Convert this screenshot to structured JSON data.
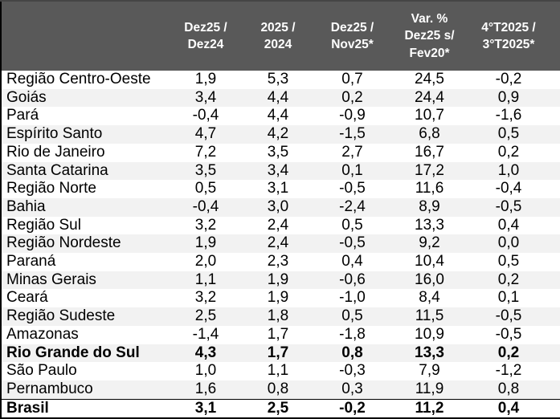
{
  "colors": {
    "header_bg": "#595959",
    "header_text": "#ffffff",
    "stripe": "#f2f2f2",
    "text": "#000000",
    "border": "#000000"
  },
  "table": {
    "row_label_column_header": "",
    "columns": [
      {
        "label": "Dez25 /\nDez24"
      },
      {
        "label": "2025 /\n2024"
      },
      {
        "label": "Dez25 /\nNov25*"
      },
      {
        "label": "Var. %\nDez25 s/\nFev20*"
      },
      {
        "label": "4°T2025 /\n3°T2025*"
      }
    ],
    "rows": [
      {
        "name": "Região Centro-Oeste",
        "values": [
          "1,9",
          "5,3",
          "0,7",
          "24,5",
          "-0,2"
        ],
        "bold": false,
        "total": false
      },
      {
        "name": "Goiás",
        "values": [
          "3,4",
          "4,4",
          "0,2",
          "24,4",
          "0,9"
        ],
        "bold": false,
        "total": false
      },
      {
        "name": "Pará",
        "values": [
          "-0,4",
          "4,4",
          "-0,9",
          "10,7",
          "-1,6"
        ],
        "bold": false,
        "total": false
      },
      {
        "name": "Espírito Santo",
        "values": [
          "4,7",
          "4,2",
          "-1,5",
          "6,8",
          "0,5"
        ],
        "bold": false,
        "total": false
      },
      {
        "name": "Rio de Janeiro",
        "values": [
          "7,2",
          "3,5",
          "2,7",
          "16,7",
          "0,2"
        ],
        "bold": false,
        "total": false
      },
      {
        "name": "Santa Catarina",
        "values": [
          "3,5",
          "3,4",
          "0,1",
          "17,2",
          "1,0"
        ],
        "bold": false,
        "total": false
      },
      {
        "name": "Região Norte",
        "values": [
          "0,5",
          "3,1",
          "-0,5",
          "11,6",
          "-0,4"
        ],
        "bold": false,
        "total": false
      },
      {
        "name": "Bahia",
        "values": [
          "-0,4",
          "3,0",
          "-2,4",
          "8,9",
          "-0,5"
        ],
        "bold": false,
        "total": false
      },
      {
        "name": "Região Sul",
        "values": [
          "3,2",
          "2,4",
          "0,5",
          "13,3",
          "0,4"
        ],
        "bold": false,
        "total": false
      },
      {
        "name": "Região Nordeste",
        "values": [
          "1,9",
          "2,4",
          "-0,5",
          "9,2",
          "0,0"
        ],
        "bold": false,
        "total": false
      },
      {
        "name": "Paraná",
        "values": [
          "2,0",
          "2,3",
          "0,4",
          "10,4",
          "0,5"
        ],
        "bold": false,
        "total": false
      },
      {
        "name": "Minas Gerais",
        "values": [
          "1,1",
          "1,9",
          "-0,6",
          "16,0",
          "0,2"
        ],
        "bold": false,
        "total": false
      },
      {
        "name": "Ceará",
        "values": [
          "3,2",
          "1,9",
          "-1,0",
          "8,4",
          "0,1"
        ],
        "bold": false,
        "total": false
      },
      {
        "name": "Região Sudeste",
        "values": [
          "2,5",
          "1,8",
          "0,5",
          "11,5",
          "-0,5"
        ],
        "bold": false,
        "total": false
      },
      {
        "name": "Amazonas",
        "values": [
          "-1,4",
          "1,7",
          "-1,8",
          "10,9",
          "-0,5"
        ],
        "bold": false,
        "total": false
      },
      {
        "name": "Rio Grande do Sul",
        "values": [
          "4,3",
          "1,7",
          "0,8",
          "13,3",
          "0,2"
        ],
        "bold": true,
        "total": false
      },
      {
        "name": "São Paulo",
        "values": [
          "1,0",
          "1,1",
          "-0,3",
          "7,9",
          "-1,2"
        ],
        "bold": false,
        "total": false
      },
      {
        "name": "Pernambuco",
        "values": [
          "1,6",
          "0,8",
          "0,3",
          "11,9",
          "0,8"
        ],
        "bold": false,
        "total": false
      },
      {
        "name": "Brasil",
        "values": [
          "3,1",
          "2,5",
          "-0,2",
          "11,2",
          "0,4"
        ],
        "bold": true,
        "total": true
      }
    ]
  }
}
